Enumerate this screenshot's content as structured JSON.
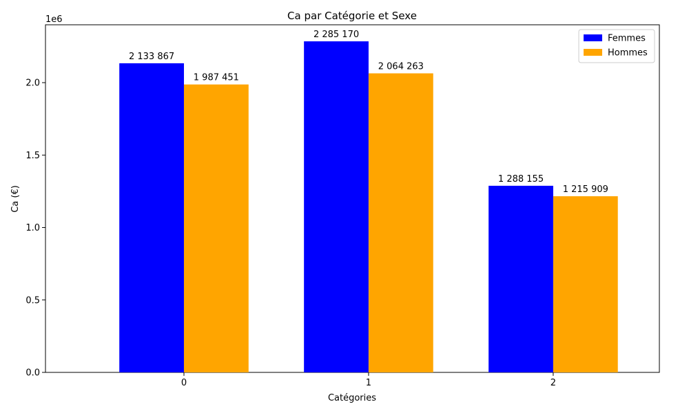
{
  "chart_data": {
    "type": "bar",
    "title": "Ca par Catégorie et Sexe",
    "xlabel": "Catégories",
    "ylabel": "Ca (€)",
    "y_offset_text": "1e6",
    "categories": [
      "0",
      "1",
      "2"
    ],
    "series": [
      {
        "name": "Femmes",
        "color": "#0000ff",
        "values": [
          2133867,
          2285170,
          1288155
        ],
        "labels": [
          "2 133 867",
          "2 285 170",
          "1 288 155"
        ]
      },
      {
        "name": "Hommes",
        "color": "#ffa500",
        "values": [
          1987451,
          2064263,
          1215909
        ],
        "labels": [
          "1 987 451",
          "2 064 263",
          "1 215 909"
        ]
      }
    ],
    "ylim": [
      0,
      2399428
    ],
    "yticks": [
      0,
      500000,
      1000000,
      1500000,
      2000000
    ],
    "ytick_labels": [
      "0.0",
      "0.5",
      "1.0",
      "1.5",
      "2.0"
    ],
    "grid": false,
    "legend_position": "top-right"
  }
}
